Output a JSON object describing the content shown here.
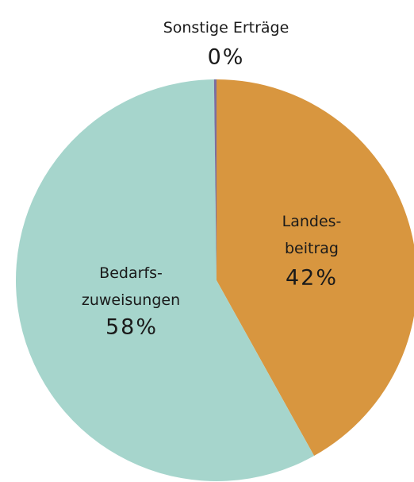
{
  "chart_data": {
    "type": "pie",
    "categories": [
      "Landes-\nbeitrag",
      "Bedarfs-\nzuweisungen",
      "Sonstige Erträge"
    ],
    "values": [
      42,
      58,
      0.2
    ],
    "value_labels": [
      "42%",
      "58%",
      "0%"
    ],
    "colors": [
      "#d8963f",
      "#a6d5cc",
      "#7b6fa0"
    ]
  }
}
